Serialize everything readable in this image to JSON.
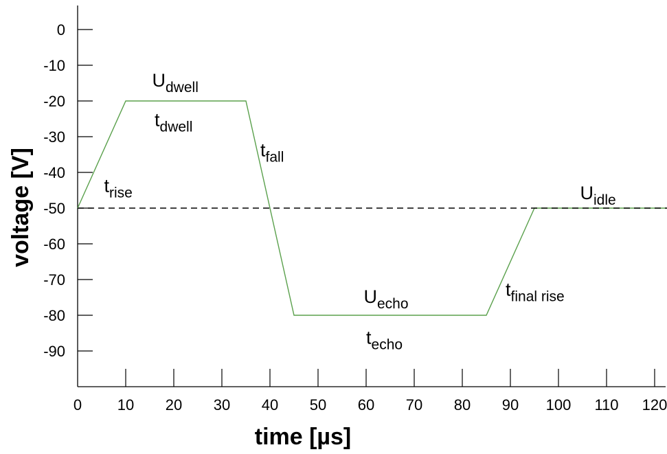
{
  "chart_data": {
    "type": "line",
    "xlabel": "time  [µs]",
    "ylabel": "voltage  [V]",
    "xlim": [
      0,
      123
    ],
    "ylim": [
      -100,
      5
    ],
    "x_ticks": [
      0,
      10,
      20,
      30,
      40,
      50,
      60,
      70,
      80,
      90,
      100,
      110,
      120
    ],
    "y_ticks": [
      0,
      -10,
      -20,
      -30,
      -40,
      -50,
      -60,
      -70,
      -80,
      -90
    ],
    "grid": false,
    "series": [
      {
        "color": "#5aa04c",
        "style": "solid",
        "x": [
          0,
          10,
          35,
          45,
          85,
          95,
          123
        ],
        "y": [
          -50,
          -20,
          -20,
          -80,
          -80,
          -50,
          -50
        ]
      },
      {
        "color": "#000000",
        "style": "dashed",
        "x": [
          0,
          123
        ],
        "y": [
          -50,
          -50
        ]
      }
    ],
    "annotations": [
      {
        "id": "t-rise",
        "main": "t",
        "sub": "rise",
        "x": 5.5,
        "y": -45.5
      },
      {
        "id": "u-dwell",
        "main": "U",
        "sub": "dwell",
        "x": 15.5,
        "y": -16
      },
      {
        "id": "t-dwell",
        "main": "t",
        "sub": "dwell",
        "x": 16.0,
        "y": -27
      },
      {
        "id": "t-fall",
        "main": "t",
        "sub": "fall",
        "x": 38.0,
        "y": -35.5
      },
      {
        "id": "u-echo",
        "main": "U",
        "sub": "echo",
        "x": 59.5,
        "y": -76.5
      },
      {
        "id": "t-echo",
        "main": "t",
        "sub": "echo",
        "x": 60.0,
        "y": -88
      },
      {
        "id": "t-final-rise",
        "main": "t",
        "sub": "final rise",
        "x": 89.0,
        "y": -74.5
      },
      {
        "id": "u-idle",
        "main": "U",
        "sub": "idle",
        "x": 104.5,
        "y": -47.5
      }
    ]
  }
}
